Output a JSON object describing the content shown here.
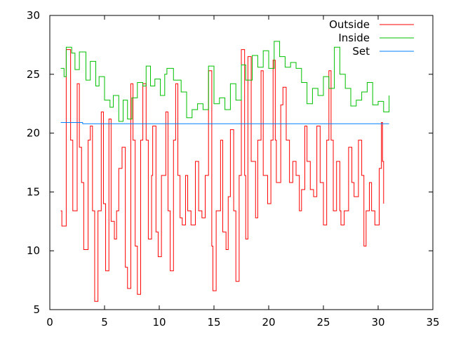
{
  "chart_data": {
    "type": "line",
    "title": "",
    "xlabel": "",
    "ylabel": "",
    "xlim": [
      0,
      35
    ],
    "ylim": [
      5,
      30
    ],
    "xticks": [
      0,
      5,
      10,
      15,
      20,
      25,
      30,
      35
    ],
    "yticks": [
      5,
      10,
      15,
      20,
      25,
      30
    ],
    "grid": false,
    "legend_position": "top-right",
    "series": [
      {
        "name": "Outside",
        "color": "#ff0000",
        "x": [
          1.0,
          1.1,
          1.5,
          1.9,
          2.1,
          2.5,
          2.7,
          2.9,
          3.1,
          3.5,
          3.7,
          3.9,
          4.1,
          4.4,
          4.7,
          4.9,
          5.1,
          5.4,
          5.6,
          5.9,
          6.1,
          6.3,
          6.6,
          6.9,
          7.1,
          7.4,
          7.6,
          7.8,
          8.0,
          8.3,
          8.5,
          8.8,
          9.0,
          9.3,
          9.4,
          9.7,
          9.9,
          10.2,
          10.6,
          10.8,
          11.0,
          11.3,
          11.5,
          11.7,
          11.9,
          12.1,
          12.4,
          12.6,
          12.9,
          13.3,
          13.6,
          13.9,
          14.2,
          14.5,
          14.8,
          14.9,
          15.2,
          15.6,
          15.8,
          16.1,
          16.3,
          16.5,
          16.8,
          17.0,
          17.3,
          17.5,
          17.8,
          17.9,
          18.1,
          18.4,
          18.8,
          19.0,
          19.3,
          19.5,
          19.9,
          20.2,
          20.4,
          20.6,
          20.7,
          21.1,
          21.3,
          21.6,
          21.9,
          22.2,
          22.5,
          22.8,
          23.0,
          23.3,
          23.5,
          23.8,
          24.1,
          24.4,
          24.7,
          25.0,
          25.3,
          25.5,
          25.7,
          25.9,
          26.2,
          26.5,
          26.6,
          26.9,
          27.3,
          27.6,
          27.8,
          28.2,
          28.5,
          28.7,
          28.9,
          29.2,
          29.4,
          29.7,
          30.1,
          30.3,
          30.4,
          30.5
        ],
        "y": [
          13.4,
          12.1,
          27.1,
          19.4,
          13.4,
          24.2,
          18.8,
          15.8,
          10.1,
          19.4,
          20.6,
          13.4,
          5.7,
          13.4,
          21.8,
          14.0,
          8.3,
          21.2,
          12.5,
          11.0,
          13.4,
          17.0,
          18.8,
          8.6,
          6.8,
          24.2,
          19.4,
          10.4,
          6.3,
          19.4,
          24.2,
          19.4,
          11.0,
          16.4,
          20.6,
          11.6,
          9.5,
          16.4,
          21.8,
          13.4,
          8.3,
          19.4,
          24.2,
          16.4,
          12.8,
          12.2,
          16.4,
          13.4,
          12.2,
          17.6,
          13.4,
          12.8,
          16.4,
          25.3,
          10.4,
          6.6,
          13.4,
          19.4,
          11.6,
          10.1,
          14.6,
          20.3,
          13.4,
          7.4,
          16.4,
          27.1,
          16.4,
          11.0,
          26.5,
          17.6,
          12.8,
          19.4,
          25.3,
          16.4,
          14.0,
          19.4,
          26.2,
          19.4,
          15.8,
          22.4,
          23.9,
          19.4,
          15.8,
          17.6,
          16.4,
          13.4,
          15.2,
          20.6,
          17.6,
          15.2,
          14.6,
          20.6,
          15.8,
          12.2,
          19.4,
          25.3,
          19.4,
          13.4,
          17.6,
          13.4,
          12.2,
          13.4,
          18.8,
          15.8,
          14.6,
          19.4,
          16.4,
          10.4,
          13.4,
          15.8,
          13.4,
          12.2,
          17.0,
          20.9,
          17.6,
          14.0
        ]
      },
      {
        "name": "Inside",
        "color": "#00c000",
        "x": [
          1.0,
          1.3,
          1.5,
          2.0,
          2.3,
          2.7,
          3.3,
          3.7,
          4.2,
          4.5,
          5.0,
          5.5,
          5.8,
          6.3,
          6.7,
          7.1,
          7.5,
          8.0,
          8.5,
          8.8,
          9.2,
          9.6,
          10.1,
          10.5,
          10.7,
          11.3,
          12.0,
          12.5,
          13.0,
          13.5,
          14.0,
          14.5,
          15.0,
          15.5,
          16.0,
          16.5,
          17.0,
          17.5,
          17.9,
          18.5,
          19.0,
          19.5,
          20.0,
          20.5,
          21.0,
          21.5,
          22.0,
          22.5,
          23.0,
          23.5,
          24.0,
          24.5,
          25.0,
          25.5,
          26.0,
          26.5,
          27.0,
          27.5,
          28.0,
          28.5,
          29.0,
          29.5,
          30.0,
          30.5,
          31.0
        ],
        "y": [
          25.5,
          24.8,
          27.3,
          26.8,
          25.4,
          26.9,
          24.5,
          26.1,
          24.0,
          24.8,
          22.8,
          22.2,
          23.2,
          21.0,
          22.8,
          21.2,
          23.0,
          24.3,
          24.0,
          25.7,
          24.0,
          24.6,
          23.2,
          25.0,
          25.5,
          24.5,
          23.5,
          21.3,
          22.0,
          22.5,
          22.0,
          25.7,
          22.5,
          23.0,
          22.0,
          24.2,
          22.8,
          25.8,
          24.5,
          26.6,
          25.6,
          27.0,
          25.5,
          27.8,
          26.5,
          25.6,
          26.0,
          25.5,
          24.3,
          22.5,
          23.8,
          23.2,
          24.8,
          23.8,
          27.3,
          25.0,
          23.8,
          22.3,
          22.8,
          23.5,
          24.3,
          22.4,
          22.7,
          21.8,
          23.2
        ]
      },
      {
        "name": "Set",
        "color": "#0080ff",
        "x": [
          1.0,
          2.5,
          3.0,
          31.0
        ],
        "y": [
          20.9,
          20.9,
          20.8,
          20.8
        ]
      }
    ]
  }
}
